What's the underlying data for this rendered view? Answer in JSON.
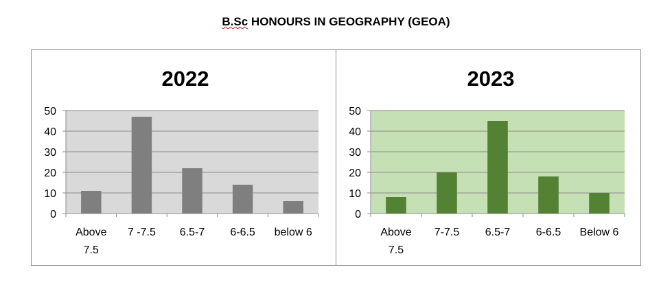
{
  "page": {
    "title_part1": "B.Sc",
    "title_part2": " HONOURS IN GEOGRAPHY (GEOA)"
  },
  "chart_data": [
    {
      "type": "bar",
      "title": "2022",
      "categories": [
        [
          "Above",
          "7.5"
        ],
        [
          "7 -7.5"
        ],
        [
          "6.5-7"
        ],
        [
          "6-6.5"
        ],
        [
          "below 6"
        ]
      ],
      "values": [
        11,
        47,
        22,
        14,
        6
      ],
      "ylim": [
        0,
        50
      ],
      "yticks": [
        0,
        10,
        20,
        30,
        40,
        50
      ],
      "grid": true,
      "colors": {
        "plot_bg": "#d9d9d9",
        "bar": "#7f7f7f",
        "grid": "#8a8a8a"
      }
    },
    {
      "type": "bar",
      "title": "2023",
      "categories": [
        [
          "Above",
          "7.5"
        ],
        [
          "7-7.5"
        ],
        [
          "6.5-7"
        ],
        [
          "6-6.5"
        ],
        [
          "Below 6"
        ]
      ],
      "values": [
        8,
        20,
        45,
        18,
        10
      ],
      "ylim": [
        0,
        50
      ],
      "yticks": [
        0,
        10,
        20,
        30,
        40,
        50
      ],
      "grid": true,
      "colors": {
        "plot_bg": "#c5e0b4",
        "bar": "#548235",
        "grid": "#8a8a8a"
      }
    }
  ]
}
